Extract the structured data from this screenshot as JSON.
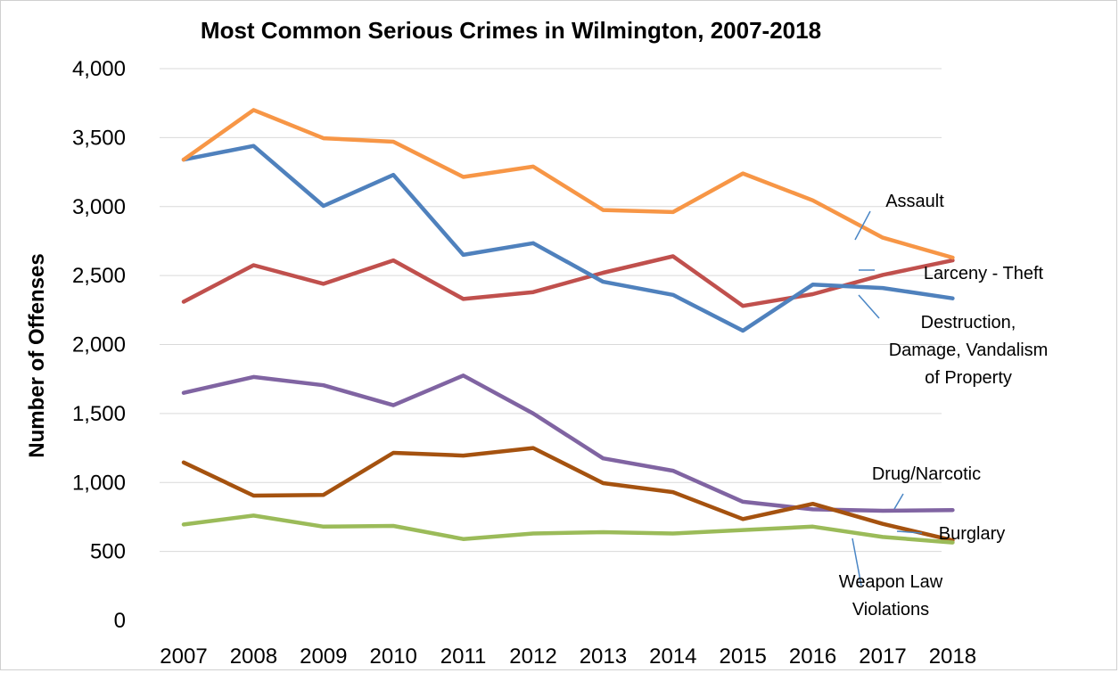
{
  "chart_data": {
    "type": "line",
    "title": "Most Common Serious Crimes in Wilmington, 2007-2018",
    "xlabel": "",
    "ylabel": "Number of Offenses",
    "ylim": [
      0,
      4000
    ],
    "yticks": [
      "0",
      "500",
      "1,000",
      "1,500",
      "2,000",
      "2,500",
      "3,000",
      "3,500",
      "4,000"
    ],
    "categories": [
      "2007",
      "2008",
      "2009",
      "2010",
      "2011",
      "2012",
      "2013",
      "2014",
      "2015",
      "2016",
      "2017",
      "2018"
    ],
    "grid": true,
    "legend": "none (direct labels at right)",
    "series": [
      {
        "name": "Assault",
        "color": "#f79646",
        "values": [
          3340,
          3700,
          3495,
          3470,
          3215,
          3290,
          2975,
          2960,
          3240,
          3045,
          2775,
          2630
        ]
      },
      {
        "name": "Larceny - Theft",
        "color": "#4f81bd",
        "values": [
          3340,
          3440,
          3005,
          3230,
          2650,
          2735,
          2455,
          2360,
          2100,
          2435,
          2410,
          2335
        ]
      },
      {
        "name": "Destruction, Damage, Vandalism of Property",
        "color": "#c0504d",
        "values": [
          2310,
          2575,
          2440,
          2610,
          2330,
          2380,
          2520,
          2640,
          2280,
          2365,
          2505,
          2610
        ]
      },
      {
        "name": "Drug/Narcotic",
        "color": "#8064a2",
        "values": [
          1650,
          1765,
          1705,
          1560,
          1775,
          1500,
          1175,
          1085,
          860,
          805,
          795,
          800
        ]
      },
      {
        "name": "Burglary",
        "color": "#a5520f",
        "values": [
          1145,
          905,
          910,
          1215,
          1195,
          1250,
          995,
          930,
          735,
          845,
          700,
          580
        ]
      },
      {
        "name": "Weapon Law Violations",
        "color": "#9bbb59",
        "values": [
          695,
          760,
          680,
          685,
          590,
          630,
          640,
          630,
          655,
          680,
          605,
          565
        ]
      }
    ],
    "annotations": {
      "assault": [
        "Assault"
      ],
      "larceny": [
        "Larceny - Theft"
      ],
      "destruction": [
        "Destruction,",
        "Damage, Vandalism",
        "of Property"
      ],
      "drug": [
        "Drug/Narcotic"
      ],
      "burglary": [
        "Burglary"
      ],
      "weapon": [
        "Weapon Law",
        "Violations"
      ]
    }
  }
}
